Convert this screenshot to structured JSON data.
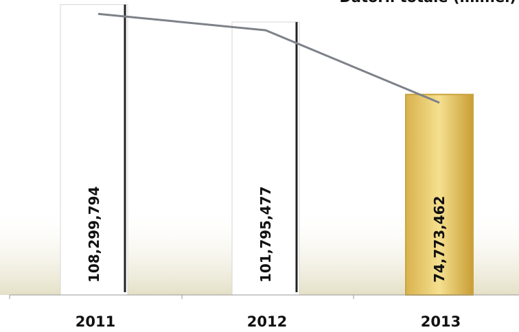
{
  "chart_data": {
    "type": "bar",
    "title": "Datorii totale (mil.lei)",
    "categories": [
      "2011",
      "2012",
      "2013"
    ],
    "values": [
      108299794,
      101795477,
      74773462
    ],
    "value_labels": [
      "108,299,794",
      "101,795,477",
      "74,773,462"
    ],
    "ylim": [
      0,
      110000000
    ],
    "grid": false,
    "trend_line": true,
    "colors": {
      "bar_default": "#ffffff",
      "bar_highlight": "#eed27a",
      "bar_highlight_edge": "#c9a43f",
      "trend_line": "#7d8188",
      "floor_shade": "#e9e6cc"
    }
  }
}
